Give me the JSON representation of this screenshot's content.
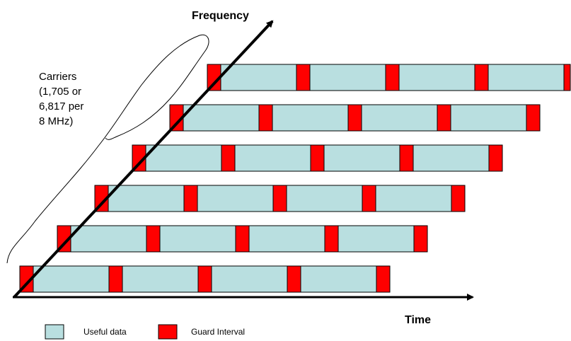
{
  "axes": {
    "frequency_label": "Frequency",
    "time_label": "Time"
  },
  "carriers_note": [
    "Carriers",
    "(1,705 or",
    "6,817 per",
    "8 MHz)"
  ],
  "legend": {
    "useful_data_label": "Useful data",
    "guard_interval_label": "Guard Interval"
  },
  "colors": {
    "useful_data": "#b9dfe0",
    "guard_interval": "#ff0000",
    "axis": "#000000"
  },
  "diagram": {
    "carrier_rows": 6,
    "symbols_per_row": 4,
    "row_ends_with_guard_interval": true
  }
}
